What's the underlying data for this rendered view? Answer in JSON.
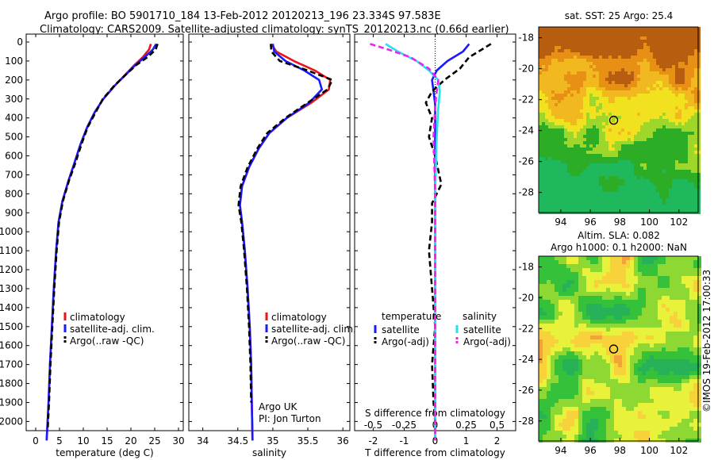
{
  "header": {
    "title_line1": "Argo profile: BO 5901710_184 13-Feb-2012 20120213_196 23.334S 97.583E",
    "title_line2": "Climatology: CARS2009. Satellite-adjusted climatology: synTS_20120213.nc (0.66d earlier)"
  },
  "stamp": "©IMOS 19-Feb-2012 17:00:33",
  "colors": {
    "climatology": "#e8161b",
    "satellite": "#1a1aff",
    "argo": "#000000",
    "sat_s": "#22e2ee",
    "argo_s": "#ee22ee"
  },
  "chart_data": [
    {
      "type": "line",
      "id": "temperature",
      "xlabel": "temperature (deg C)",
      "xlim": [
        -2,
        31
      ],
      "ylim": [
        2100,
        0
      ],
      "xticks": [
        "0",
        "5",
        "10",
        "15",
        "20",
        "25",
        "30"
      ],
      "yticks": [
        "0",
        "100",
        "200",
        "300",
        "400",
        "500",
        "600",
        "700",
        "800",
        "900",
        "1000",
        "1100",
        "1200",
        "1300",
        "1400",
        "1500",
        "1600",
        "1700",
        "1800",
        "1900",
        "2000"
      ],
      "legend": [
        "climatology",
        "satellite-adj. clim.",
        "Argo(..raw -QC)"
      ],
      "series": [
        {
          "name": "climatology",
          "color": "#e8161b",
          "style": "solid",
          "x": [
            24.2,
            23.8,
            22.5,
            20.8,
            18.9,
            16.6,
            14.2,
            12.4,
            10.8,
            9.4,
            8.1,
            6.9,
            5.6,
            4.8,
            4.3,
            3.8,
            3.4,
            3.0,
            2.7,
            2.4,
            2.3
          ],
          "y": [
            10,
            40,
            80,
            120,
            170,
            230,
            300,
            370,
            450,
            540,
            640,
            730,
            840,
            950,
            1100,
            1300,
            1500,
            1700,
            1900,
            2050,
            2100
          ]
        },
        {
          "name": "satellite-adj. clim.",
          "color": "#1a1aff",
          "style": "solid",
          "x": [
            25.3,
            24.6,
            22.9,
            21.0,
            19.0,
            16.6,
            14.2,
            12.4,
            10.8,
            9.4,
            8.1,
            6.9,
            5.6,
            4.8,
            4.3,
            3.8,
            3.4,
            3.0,
            2.7,
            2.4,
            2.3
          ],
          "y": [
            10,
            40,
            80,
            120,
            170,
            230,
            300,
            370,
            450,
            540,
            640,
            730,
            840,
            950,
            1100,
            1300,
            1500,
            1700,
            1900,
            2050,
            2100
          ]
        },
        {
          "name": "Argo(..raw -QC)",
          "color": "#000000",
          "style": "dashed",
          "x": [
            25.6,
            25.2,
            23.5,
            21.2,
            19.0,
            16.5,
            14.1,
            12.6,
            10.9,
            9.6,
            8.3,
            7.0,
            5.7,
            4.9,
            4.4,
            3.9,
            3.5,
            3.1,
            2.8,
            2.5
          ],
          "y": [
            10,
            40,
            80,
            120,
            170,
            230,
            300,
            370,
            450,
            540,
            640,
            730,
            840,
            950,
            1100,
            1300,
            1500,
            1700,
            1900,
            2050
          ]
        }
      ]
    },
    {
      "type": "line",
      "id": "salinity",
      "xlabel": "salinity",
      "xlim": [
        33.8,
        36.1
      ],
      "ylim": [
        2100,
        0
      ],
      "xticks": [
        "34",
        "34.5",
        "35",
        "35.5",
        "36"
      ],
      "legend": [
        "climatology",
        "satellite-adj. clim.",
        "Argo(..raw -QC)"
      ],
      "annotation": [
        "Argo UK",
        "PI: Jon Turton"
      ],
      "series": [
        {
          "name": "climatology",
          "color": "#e8161b",
          "style": "solid",
          "x": [
            34.98,
            35.05,
            35.3,
            35.6,
            35.82,
            35.8,
            35.55,
            35.2,
            34.95,
            34.8,
            34.66,
            34.56,
            34.53,
            34.56,
            34.6,
            34.64,
            34.67,
            34.69,
            34.7,
            34.71
          ],
          "y": [
            10,
            50,
            100,
            150,
            200,
            250,
            320,
            400,
            480,
            560,
            660,
            760,
            860,
            950,
            1100,
            1300,
            1500,
            1700,
            1900,
            2100
          ]
        },
        {
          "name": "satellite-adj. clim.",
          "color": "#1a1aff",
          "style": "solid",
          "x": [
            35.0,
            35.02,
            35.18,
            35.45,
            35.66,
            35.7,
            35.52,
            35.2,
            34.95,
            34.8,
            34.66,
            34.56,
            34.53,
            34.56,
            34.6,
            34.64,
            34.67,
            34.69,
            34.7,
            34.71
          ],
          "y": [
            10,
            50,
            100,
            150,
            200,
            250,
            320,
            400,
            480,
            560,
            660,
            760,
            860,
            950,
            1100,
            1300,
            1500,
            1700,
            1900,
            2100
          ]
        },
        {
          "name": "Argo(..raw -QC)",
          "color": "#000000",
          "style": "dashed",
          "x": [
            34.97,
            34.98,
            35.1,
            35.5,
            35.85,
            35.78,
            35.5,
            35.18,
            34.92,
            34.78,
            34.64,
            34.54,
            34.51,
            34.55,
            34.59,
            34.63,
            34.66,
            34.68,
            34.69
          ],
          "y": [
            10,
            50,
            100,
            150,
            200,
            250,
            320,
            400,
            480,
            560,
            660,
            760,
            860,
            950,
            1100,
            1300,
            1500,
            1700,
            1900
          ]
        }
      ]
    },
    {
      "type": "line",
      "id": "difference",
      "xlabel": "T difference from climatology",
      "xlabel_top": "S difference from climatology",
      "xlim": [
        -2.6,
        2.6
      ],
      "ylim": [
        2100,
        0
      ],
      "xticks": [
        "-2",
        "-1",
        "0",
        "1",
        "2"
      ],
      "xticks_s": [
        "-0.5",
        "-0.25",
        "0",
        "0.25",
        "0.5"
      ],
      "legend_left_title": "temperature",
      "legend_right_title": "salinity",
      "legend": [
        "satellite",
        "Argo(-adj)",
        "satellite",
        "Argo(-adj)"
      ],
      "series": [
        {
          "name": "satellite",
          "group": "temperature",
          "color": "#1a1aff",
          "style": "solid",
          "x": [
            1.1,
            0.9,
            0.4,
            0.05,
            -0.1,
            -0.05,
            0.0,
            0.0,
            0.0,
            0.0
          ],
          "y": [
            10,
            50,
            100,
            150,
            200,
            260,
            330,
            400,
            600,
            2100
          ]
        },
        {
          "name": "Argo(-adj)",
          "group": "temperature",
          "color": "#000000",
          "style": "dashed",
          "x": [
            1.8,
            1.5,
            1.1,
            0.8,
            0.3,
            -0.1,
            -0.3,
            -0.1,
            -0.2,
            0.0,
            0.2,
            -0.1,
            -0.1,
            -0.2,
            -0.1,
            0.0,
            -0.1,
            -0.05,
            0.0,
            0.0
          ],
          "y": [
            10,
            40,
            80,
            140,
            200,
            260,
            320,
            400,
            500,
            600,
            750,
            850,
            950,
            1100,
            1300,
            1500,
            1700,
            1900,
            2000,
            2050
          ]
        },
        {
          "name": "satellite",
          "group": "salinity",
          "color": "#22e2ee",
          "style": "solid",
          "x": [
            -1.6,
            -1.2,
            -0.6,
            -0.2,
            0.1,
            0.15,
            0.1,
            0.05,
            0.0,
            0.0
          ],
          "y": [
            10,
            50,
            100,
            150,
            200,
            260,
            350,
            500,
            800,
            2100
          ]
        },
        {
          "name": "Argo(-adj)",
          "group": "salinity",
          "color": "#ee22ee",
          "style": "dashed",
          "x": [
            -2.1,
            -1.5,
            -0.8,
            -0.2,
            0.1,
            0.05,
            0.0,
            -0.05,
            0.0,
            0.0
          ],
          "y": [
            10,
            40,
            80,
            140,
            200,
            260,
            340,
            500,
            800,
            2100
          ]
        }
      ]
    },
    {
      "type": "heatmap",
      "id": "sst_map",
      "title": "sat. SST: 25 Argo: 25.4",
      "xticks": [
        "94",
        "96",
        "98",
        "100",
        "102"
      ],
      "yticks": [
        "-18",
        "-20",
        "-22",
        "-24",
        "-26",
        "-28"
      ],
      "xlim": [
        92.5,
        103.3
      ],
      "ylim": [
        -29.3,
        -17.3
      ],
      "marker": [
        97.58,
        -23.33
      ]
    },
    {
      "type": "heatmap",
      "id": "sla_map",
      "title_line1": "Altim. SLA: 0.082",
      "title_line2": "Argo h1000: 0.1 h2000: NaN",
      "xticks": [
        "94",
        "96",
        "98",
        "100",
        "102"
      ],
      "yticks": [
        "-18",
        "-20",
        "-22",
        "-24",
        "-26",
        "-28"
      ],
      "xlim": [
        92.5,
        103.3
      ],
      "ylim": [
        -29.3,
        -17.3
      ],
      "marker": [
        97.58,
        -23.33
      ]
    }
  ]
}
